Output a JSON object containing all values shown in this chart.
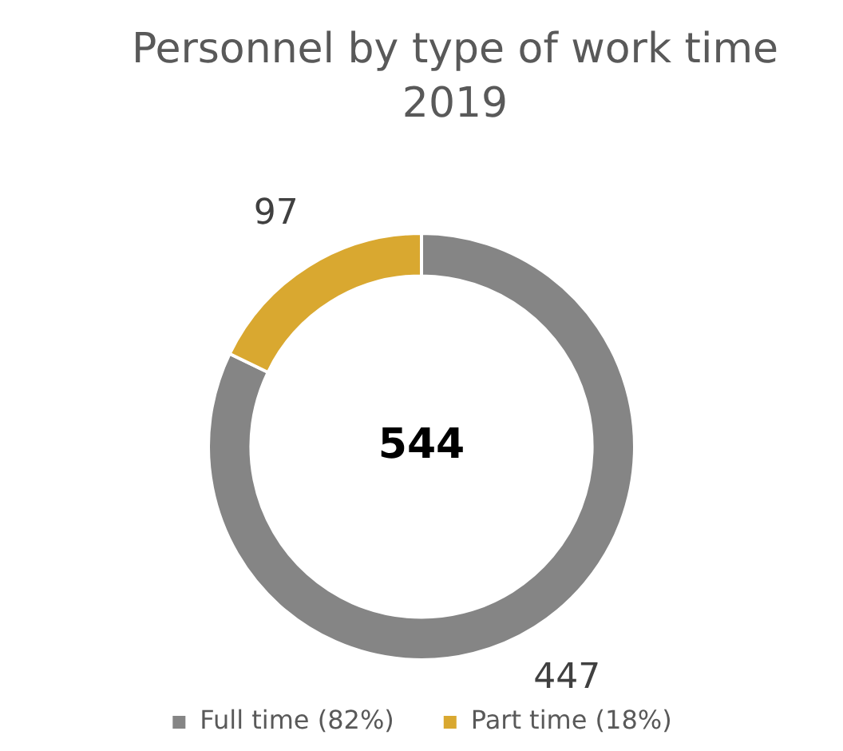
{
  "chart_data": {
    "type": "donut",
    "title": "Personnel by type of work time 2019",
    "categories": [
      "Full time (82%)",
      "Part time (18%)"
    ],
    "values": [
      447,
      97
    ],
    "colors": [
      "#858585",
      "#d9a830"
    ],
    "data_labels": true,
    "annotations": [
      "544"
    ],
    "legend": "bottom"
  }
}
